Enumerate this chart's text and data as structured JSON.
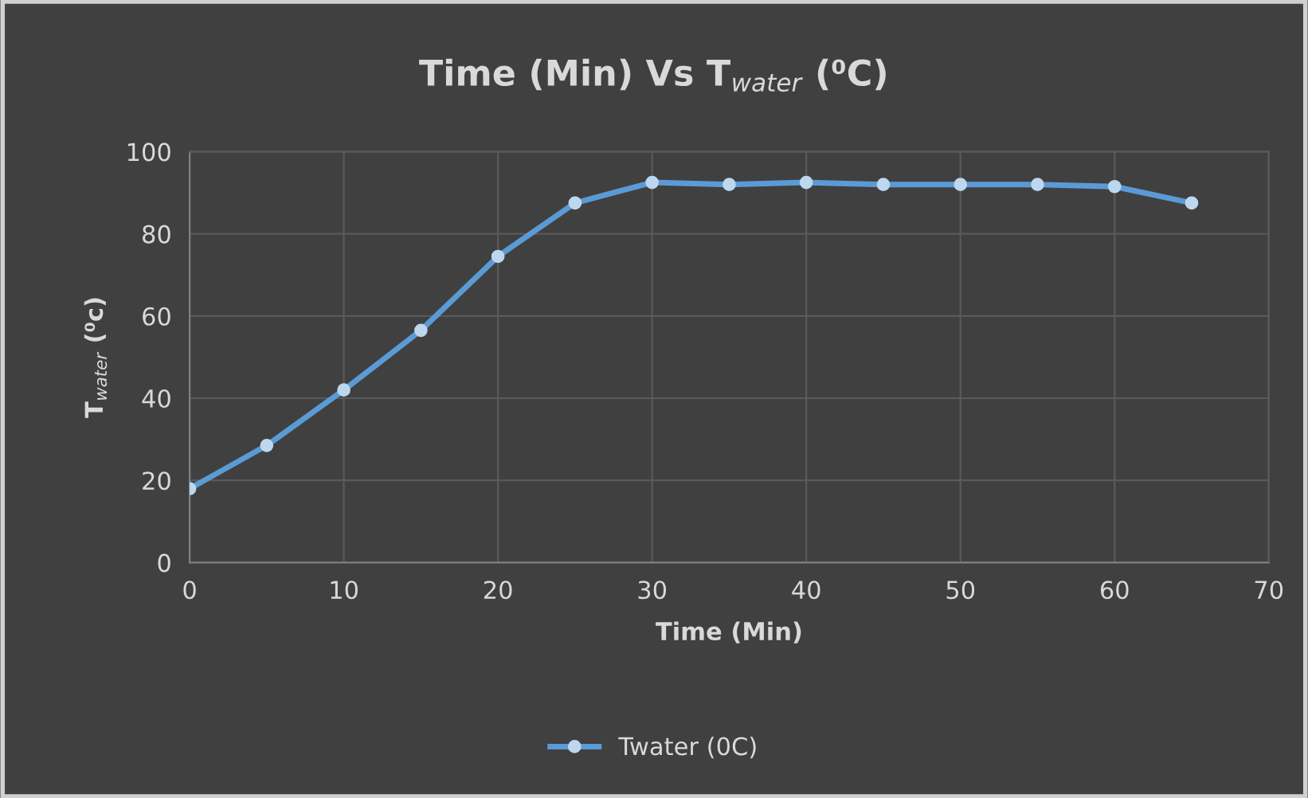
{
  "chart_data": {
    "type": "line",
    "title": "Time (Min) Vs T$_{water}$ (⁰C)",
    "xlabel": "Time (Min)",
    "ylabel": "T$_{water}$ (⁰c)",
    "x": [
      0,
      5,
      10,
      15,
      20,
      25,
      30,
      35,
      40,
      45,
      50,
      55,
      60,
      65
    ],
    "series": [
      {
        "name": "Twater (0C)",
        "color": "#5b9bd5",
        "values": [
          18,
          28.5,
          42,
          56.5,
          74.5,
          87.5,
          92.5,
          92,
          92.5,
          92,
          92,
          92,
          91.5,
          87.5
        ]
      }
    ],
    "xlim": [
      0,
      70
    ],
    "xticks": [
      0,
      10,
      20,
      30,
      40,
      50,
      60,
      70
    ],
    "ylim": [
      0,
      100
    ],
    "yticks": [
      0,
      20,
      40,
      60,
      80,
      100
    ],
    "grid": true,
    "legend": "bottom",
    "marker": "circle",
    "line_style": "solid"
  }
}
